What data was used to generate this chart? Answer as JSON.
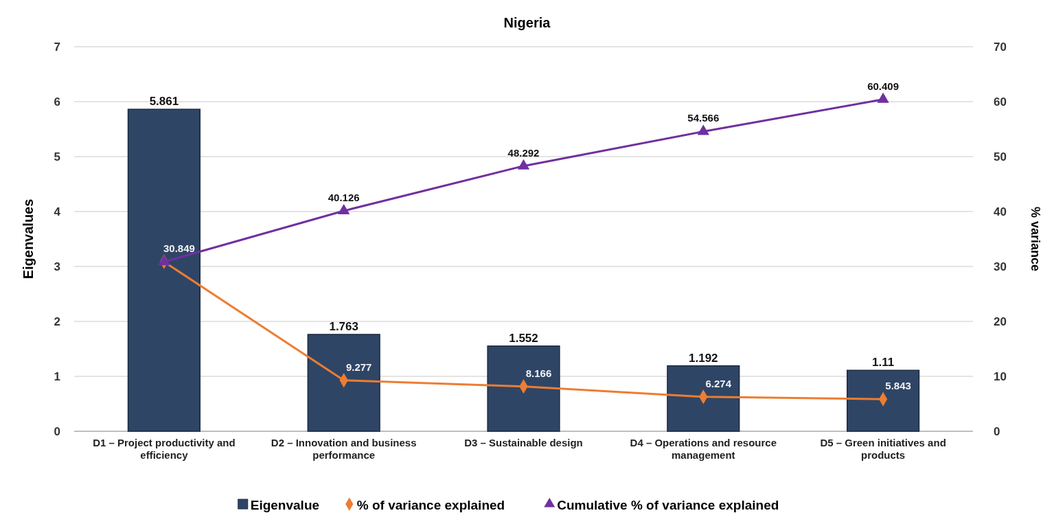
{
  "chart_data": {
    "type": "bar",
    "title": "Nigeria",
    "ylabel": "Eigenvalues",
    "y2label": "% variance",
    "categories": [
      "D1 – Project productivity and efficiency",
      "D2 – Innovation and business performance",
      "D3 – Sustainable design",
      "D4 – Operations and resource management",
      "D5 – Green initiatives and products"
    ],
    "series": [
      {
        "name": "Eigenvalue",
        "color": "#2f4566",
        "values": [
          5.861,
          1.763,
          1.552,
          1.192,
          1.11
        ]
      },
      {
        "name": "% of variance explained",
        "type": "line",
        "axis": "y2",
        "color": "#ed7d31",
        "marker": "diamond",
        "values": [
          30.849,
          9.277,
          8.166,
          6.274,
          5.843
        ]
      },
      {
        "name": "Cumulative % of variance explained",
        "type": "line",
        "axis": "y2",
        "color": "#7030a0",
        "marker": "triangle",
        "values": [
          30.849,
          40.126,
          48.292,
          54.566,
          60.409
        ],
        "value_labels": [
          null,
          "40.126",
          "48.292",
          "54.566",
          "60.409"
        ]
      }
    ],
    "ylim": [
      0,
      7
    ],
    "yticks": [
      0,
      1,
      2,
      3,
      4,
      5,
      6,
      7
    ],
    "y2lim": [
      0,
      70
    ],
    "y2ticks": [
      0,
      10,
      20,
      30,
      40,
      50,
      60,
      70
    ],
    "grid": "y",
    "legend": "bottom",
    "data_labels": true
  }
}
